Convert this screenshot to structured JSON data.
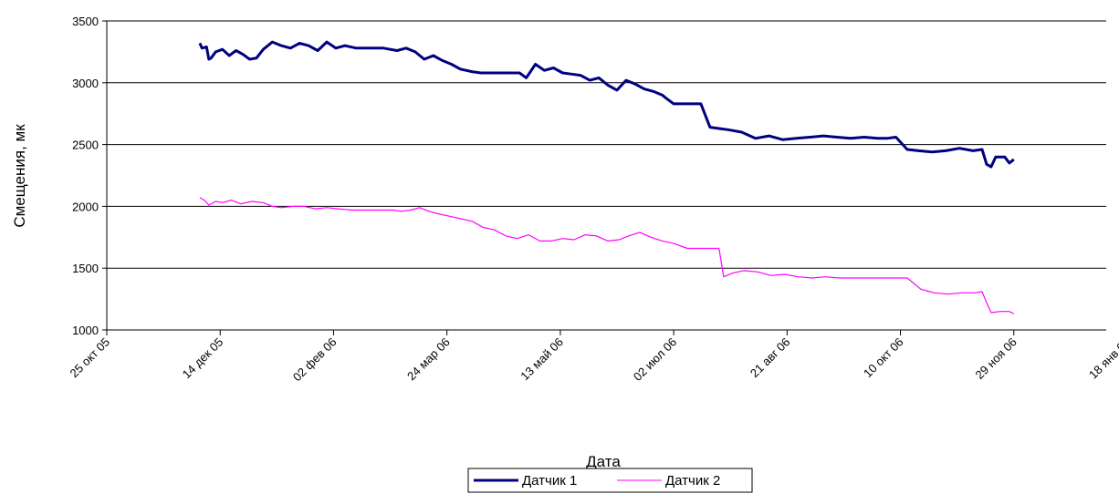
{
  "chart_data": {
    "type": "line",
    "title": "",
    "xlabel": "Дата",
    "ylabel": "Смещения, мк",
    "ylim": [
      1000,
      3500
    ],
    "y_ticks": [
      1000,
      1500,
      2000,
      2500,
      3000,
      3500
    ],
    "x_tick_labels": [
      "25 окт 05",
      "14 дек 05",
      "02 фев 06",
      "24 мар 06",
      "13 май 06",
      "02 июл 06",
      "21 авг 06",
      "10 окт 06",
      "29 ноя 06",
      "18 янв 07"
    ],
    "x_tick_dates": [
      "2005-10-25",
      "2005-12-14",
      "2006-02-02",
      "2006-03-24",
      "2006-05-13",
      "2006-07-02",
      "2006-08-21",
      "2006-10-10",
      "2006-11-29",
      "2007-01-18"
    ],
    "grid": "horizontal",
    "legend_position": "bottom",
    "series": [
      {
        "name": "Датчик 1",
        "color": "#000080",
        "x": [
          "2005-12-05",
          "2005-12-06",
          "2005-12-08",
          "2005-12-09",
          "2005-12-10",
          "2005-12-12",
          "2005-12-15",
          "2005-12-18",
          "2005-12-21",
          "2005-12-24",
          "2005-12-27",
          "2005-12-30",
          "2006-01-02",
          "2006-01-06",
          "2006-01-10",
          "2006-01-14",
          "2006-01-18",
          "2006-01-22",
          "2006-01-26",
          "2006-01-30",
          "2006-02-03",
          "2006-02-07",
          "2006-02-12",
          "2006-02-18",
          "2006-02-24",
          "2006-03-02",
          "2006-03-06",
          "2006-03-10",
          "2006-03-14",
          "2006-03-18",
          "2006-03-22",
          "2006-03-26",
          "2006-03-30",
          "2006-04-04",
          "2006-04-08",
          "2006-04-14",
          "2006-04-20",
          "2006-04-25",
          "2006-04-28",
          "2006-05-02",
          "2006-05-06",
          "2006-05-10",
          "2006-05-14",
          "2006-05-18",
          "2006-05-22",
          "2006-05-26",
          "2006-05-30",
          "2006-06-03",
          "2006-06-07",
          "2006-06-11",
          "2006-06-15",
          "2006-06-19",
          "2006-06-23",
          "2006-06-27",
          "2006-06-29",
          "2006-07-02",
          "2006-07-06",
          "2006-07-10",
          "2006-07-14",
          "2006-07-18",
          "2006-07-22",
          "2006-07-26",
          "2006-08-01",
          "2006-08-07",
          "2006-08-13",
          "2006-08-19",
          "2006-08-25",
          "2006-08-31",
          "2006-09-06",
          "2006-09-12",
          "2006-09-18",
          "2006-09-24",
          "2006-09-30",
          "2006-10-04",
          "2006-10-08",
          "2006-10-13",
          "2006-10-18",
          "2006-10-24",
          "2006-10-30",
          "2006-11-05",
          "2006-11-11",
          "2006-11-15",
          "2006-11-17",
          "2006-11-19",
          "2006-11-21",
          "2006-11-23",
          "2006-11-25",
          "2006-11-27",
          "2006-11-29"
        ],
        "y": [
          3320,
          3280,
          3290,
          3190,
          3200,
          3250,
          3270,
          3220,
          3260,
          3230,
          3190,
          3200,
          3270,
          3330,
          3300,
          3280,
          3320,
          3300,
          3260,
          3330,
          3280,
          3300,
          3280,
          3280,
          3280,
          3260,
          3280,
          3250,
          3190,
          3220,
          3180,
          3150,
          3110,
          3090,
          3080,
          3080,
          3080,
          3080,
          3040,
          3150,
          3100,
          3120,
          3080,
          3070,
          3060,
          3020,
          3040,
          2980,
          2940,
          3020,
          2990,
          2950,
          2930,
          2900,
          2870,
          2830,
          2830,
          2830,
          2830,
          2640,
          2630,
          2620,
          2600,
          2550,
          2570,
          2540,
          2550,
          2560,
          2570,
          2560,
          2550,
          2560,
          2550,
          2550,
          2560,
          2460,
          2450,
          2440,
          2450,
          2470,
          2450,
          2460,
          2340,
          2320,
          2400,
          2400,
          2400,
          2350,
          2380
        ]
      },
      {
        "name": "Датчик 2",
        "color": "#FF00FF",
        "x": [
          "2005-12-05",
          "2005-12-07",
          "2005-12-09",
          "2005-12-12",
          "2005-12-15",
          "2005-12-19",
          "2005-12-23",
          "2005-12-28",
          "2006-01-02",
          "2006-01-06",
          "2006-01-10",
          "2006-01-15",
          "2006-01-20",
          "2006-01-25",
          "2006-01-30",
          "2006-02-04",
          "2006-02-10",
          "2006-02-16",
          "2006-02-22",
          "2006-02-28",
          "2006-03-04",
          "2006-03-08",
          "2006-03-12",
          "2006-03-16",
          "2006-03-20",
          "2006-03-25",
          "2006-03-30",
          "2006-04-04",
          "2006-04-09",
          "2006-04-14",
          "2006-04-19",
          "2006-04-24",
          "2006-04-29",
          "2006-05-04",
          "2006-05-09",
          "2006-05-14",
          "2006-05-19",
          "2006-05-24",
          "2006-05-29",
          "2006-06-03",
          "2006-06-08",
          "2006-06-12",
          "2006-06-17",
          "2006-06-22",
          "2006-06-27",
          "2006-07-02",
          "2006-07-08",
          "2006-07-14",
          "2006-07-20",
          "2006-07-22",
          "2006-07-24",
          "2006-07-28",
          "2006-08-02",
          "2006-08-08",
          "2006-08-14",
          "2006-08-20",
          "2006-08-26",
          "2006-09-01",
          "2006-09-07",
          "2006-09-13",
          "2006-09-19",
          "2006-09-25",
          "2006-10-01",
          "2006-10-07",
          "2006-10-13",
          "2006-10-19",
          "2006-10-25",
          "2006-10-31",
          "2006-11-06",
          "2006-11-12",
          "2006-11-15",
          "2006-11-17",
          "2006-11-19",
          "2006-11-23",
          "2006-11-27",
          "2006-11-29"
        ],
        "y": [
          2070,
          2050,
          2010,
          2040,
          2030,
          2050,
          2020,
          2040,
          2030,
          2000,
          1990,
          2000,
          2000,
          1980,
          1990,
          1980,
          1970,
          1970,
          1970,
          1970,
          1960,
          1970,
          1990,
          1960,
          1940,
          1920,
          1900,
          1880,
          1830,
          1810,
          1760,
          1740,
          1770,
          1720,
          1720,
          1740,
          1730,
          1770,
          1760,
          1720,
          1730,
          1760,
          1790,
          1750,
          1720,
          1700,
          1660,
          1660,
          1660,
          1660,
          1430,
          1460,
          1480,
          1470,
          1440,
          1450,
          1430,
          1420,
          1430,
          1420,
          1420,
          1420,
          1420,
          1420,
          1420,
          1330,
          1300,
          1290,
          1300,
          1300,
          1310,
          1220,
          1140,
          1150,
          1150,
          1130
        ]
      }
    ]
  }
}
